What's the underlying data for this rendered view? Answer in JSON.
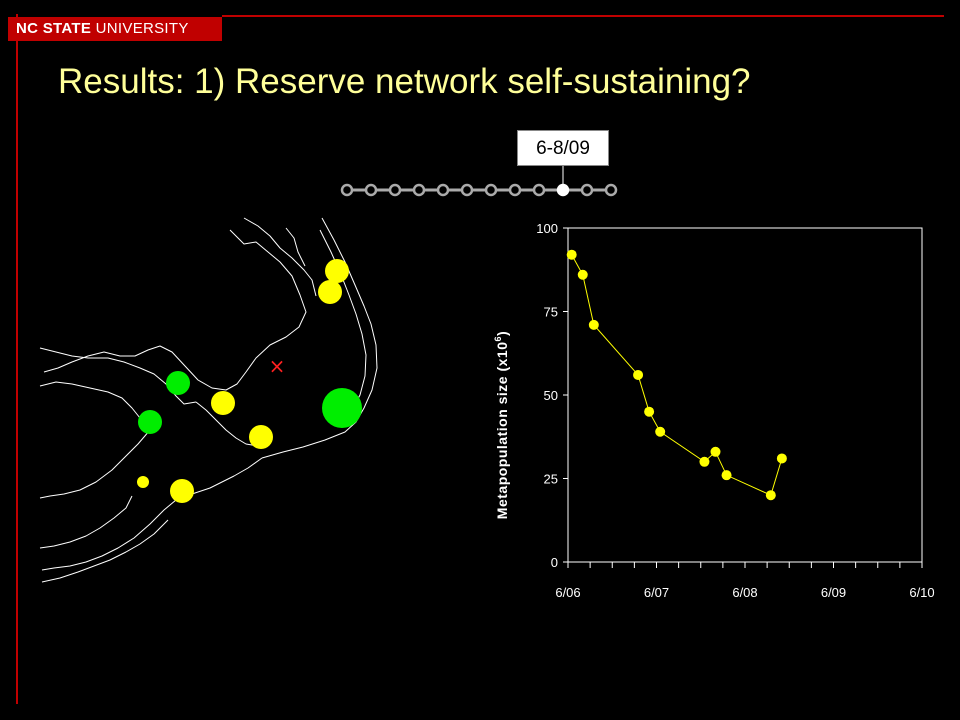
{
  "header": {
    "logo_bold": "NC STATE",
    "logo_rest": " UNIVERSITY"
  },
  "title": "Results: 1) Reserve network self-sustaining?",
  "timeline": {
    "label": "6-8/09",
    "count": 12,
    "active_index": 9
  },
  "map": {
    "marker_symbol": "×",
    "reserves": [
      {
        "status": "yellow",
        "relative_size": "medium"
      },
      {
        "status": "yellow",
        "relative_size": "medium"
      },
      {
        "status": "green",
        "relative_size": "medium"
      },
      {
        "status": "yellow",
        "relative_size": "medium"
      },
      {
        "status": "green",
        "relative_size": "large"
      },
      {
        "status": "green",
        "relative_size": "medium"
      },
      {
        "status": "yellow",
        "relative_size": "medium"
      },
      {
        "status": "yellow",
        "relative_size": "small"
      },
      {
        "status": "yellow",
        "relative_size": "medium"
      }
    ],
    "colors": {
      "yellow": "#ffff00",
      "green": "#00ee00",
      "coast": "#ffffff",
      "marker": "#ff2020"
    }
  },
  "chart_data": {
    "type": "line",
    "title": "",
    "xlabel": "",
    "ylabel": "Metapopulation size (x10",
    "ylabel_sup": "6",
    "ylabel_close": ")",
    "x_tick_labels": [
      "6/06",
      "6/07",
      "6/08",
      "6/09",
      "6/10"
    ],
    "xlim": [
      0,
      48
    ],
    "ylim": [
      0,
      100
    ],
    "y_ticks": [
      0,
      25,
      50,
      75,
      100
    ],
    "grid": false,
    "series": [
      {
        "x": [
          0.5,
          2.0,
          3.5,
          9.5,
          11.0,
          12.5,
          18.5,
          20.0,
          21.5,
          27.5,
          29.0
        ],
        "x_months_since_jun06": [
          0.5,
          2.0,
          3.5,
          9.5,
          11.0,
          12.5,
          18.5,
          20.0,
          21.5,
          27.5,
          29.0
        ],
        "y": [
          92,
          86,
          71,
          56,
          45,
          39,
          30,
          33,
          26,
          20,
          31
        ]
      }
    ],
    "colors": {
      "line": "#ffff00",
      "marker": "#ffff00",
      "axis": "#ffffff"
    }
  }
}
